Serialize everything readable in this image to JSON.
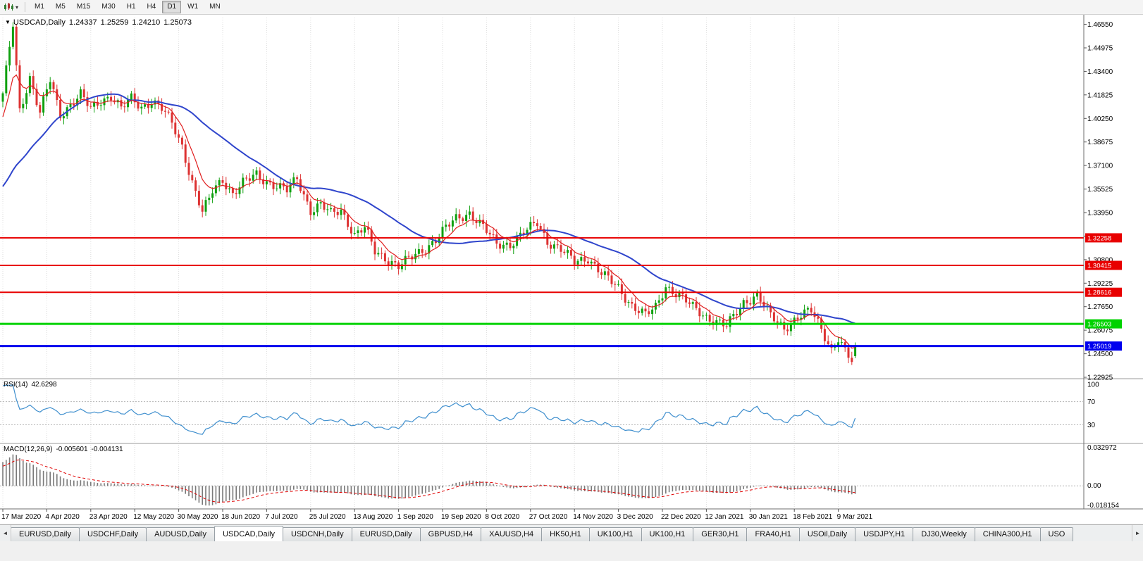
{
  "toolbar": {
    "timeframes": [
      "M1",
      "M5",
      "M15",
      "M30",
      "H1",
      "H4",
      "D1",
      "W1",
      "MN"
    ],
    "active_timeframe": "D1"
  },
  "icons": {
    "dropdown_small": "▾",
    "header_marker": "▼",
    "tab_scroll_left": "◄",
    "tab_scroll_right": "►"
  },
  "header": {
    "symbol": "USDCAD,Daily",
    "open": "1.24337",
    "high": "1.25259",
    "low": "1.24210",
    "close": "1.25073"
  },
  "panels": {
    "rsi": {
      "title": "RSI(14)",
      "value": "42.6298"
    },
    "macd": {
      "title": "MACD(12,26,9)",
      "macd": "-0.005601",
      "signal": "-0.004131"
    }
  },
  "tabs": {
    "active_index": 3,
    "items": [
      {
        "label": "EURUSD,Daily"
      },
      {
        "label": "USDCHF,Daily"
      },
      {
        "label": "AUDUSD,Daily"
      },
      {
        "label": "USDCAD,Daily"
      },
      {
        "label": "USDCNH,Daily"
      },
      {
        "label": "EURUSD,Daily"
      },
      {
        "label": "GBPUSD,H4"
      },
      {
        "label": "XAUUSD,H4"
      },
      {
        "label": "HK50,H1"
      },
      {
        "label": "UK100,H1"
      },
      {
        "label": "UK100,H1"
      },
      {
        "label": "GER30,H1"
      },
      {
        "label": "FRA40,H1"
      },
      {
        "label": "USOil,Daily"
      },
      {
        "label": "USDJPY,H1"
      },
      {
        "label": "DJ30,Weekly"
      },
      {
        "label": "CHINA300,H1"
      },
      {
        "label": "USO"
      }
    ]
  },
  "chart_data": {
    "type": "candlestick",
    "symbol": "USDCAD",
    "timeframe": "Daily",
    "bars_visible": 253,
    "bars_per_label": 13,
    "price_axis": {
      "max": 1.47,
      "min": 1.22925,
      "tick_labels": [
        "1.46550",
        "1.44975",
        "1.43400",
        "1.41825",
        "1.40250",
        "1.38675",
        "1.37100",
        "1.35525",
        "1.33950",
        "1.32375",
        "1.30800",
        "1.29225",
        "1.27650",
        "1.26075",
        "1.24500",
        "1.22925"
      ]
    },
    "x_axis_labels": [
      "17 Mar 2020",
      "4 Apr 2020",
      "23 Apr 2020",
      "12 May 2020",
      "30 May 2020",
      "18 Jun 2020",
      "7 Jul 2020",
      "25 Jul 2020",
      "13 Aug 2020",
      "1 Sep 2020",
      "19 Sep 2020",
      "8 Oct 2020",
      "27 Oct 2020",
      "14 Nov 2020",
      "3 Dec 2020",
      "22 Dec 2020",
      "12 Jan 2021",
      "30 Jan 2021",
      "18 Feb 2021",
      "9 Mar 2021"
    ],
    "last_bar": {
      "open": 1.24337,
      "high": 1.25259,
      "low": 1.2421,
      "close": 1.25073
    },
    "trend_points": [
      [
        0,
        1.418
      ],
      [
        3,
        1.4655
      ],
      [
        5,
        1.408
      ],
      [
        8,
        1.43
      ],
      [
        11,
        1.406
      ],
      [
        14,
        1.428
      ],
      [
        17,
        1.405
      ],
      [
        20,
        1.412
      ],
      [
        23,
        1.4185
      ],
      [
        26,
        1.4085
      ],
      [
        29,
        1.4145
      ],
      [
        32,
        1.418
      ],
      [
        35,
        1.409
      ],
      [
        38,
        1.4155
      ],
      [
        41,
        1.41
      ],
      [
        44,
        1.4145
      ],
      [
        47,
        1.409
      ],
      [
        50,
        1.399
      ],
      [
        53,
        1.384
      ],
      [
        56,
        1.36
      ],
      [
        59,
        1.3395
      ],
      [
        61,
        1.348
      ],
      [
        62,
        1.354
      ],
      [
        65,
        1.362
      ],
      [
        68,
        1.352
      ],
      [
        71,
        1.359
      ],
      [
        75,
        1.365
      ],
      [
        78,
        1.3605
      ],
      [
        81,
        1.357
      ],
      [
        84,
        1.354
      ],
      [
        87,
        1.3625
      ],
      [
        91,
        1.341
      ],
      [
        94,
        1.3445
      ],
      [
        97,
        1.3385
      ],
      [
        100,
        1.3415
      ],
      [
        104,
        1.3245
      ],
      [
        107,
        1.329
      ],
      [
        110,
        1.3135
      ],
      [
        113,
        1.3095
      ],
      [
        117,
        1.3035
      ],
      [
        120,
        1.308
      ],
      [
        125,
        1.316
      ],
      [
        128,
        1.3215
      ],
      [
        131,
        1.329
      ],
      [
        134,
        1.3355
      ],
      [
        138,
        1.3395
      ],
      [
        142,
        1.3295
      ],
      [
        146,
        1.3185
      ],
      [
        150,
        1.3185
      ],
      [
        154,
        1.3255
      ],
      [
        158,
        1.333
      ],
      [
        161,
        1.3205
      ],
      [
        165,
        1.3145
      ],
      [
        169,
        1.3065
      ],
      [
        173,
        1.3095
      ],
      [
        177,
        1.2985
      ],
      [
        182,
        1.289
      ],
      [
        186,
        1.2775
      ],
      [
        190,
        1.2705
      ],
      [
        193,
        1.276
      ],
      [
        196,
        1.2905
      ],
      [
        200,
        1.284
      ],
      [
        204,
        1.276
      ],
      [
        208,
        1.27
      ],
      [
        211,
        1.2665
      ],
      [
        214,
        1.263
      ],
      [
        219,
        1.2795
      ],
      [
        223,
        1.2845
      ],
      [
        227,
        1.27
      ],
      [
        231,
        1.2625
      ],
      [
        235,
        1.2695
      ],
      [
        239,
        1.2735
      ],
      [
        242,
        1.262
      ],
      [
        245,
        1.248
      ],
      [
        247,
        1.255
      ],
      [
        249,
        1.246
      ],
      [
        251,
        1.2395
      ],
      [
        252,
        1.2507
      ]
    ],
    "synthesis": {
      "noise": [
        {
          "amp": 0.0026,
          "freq": 1.7,
          "phase": 0
        },
        {
          "amp": 0.0016,
          "freq": 0.53,
          "phase": 1.0
        }
      ],
      "wick": {
        "base": 0.0012,
        "amp": 0.0028,
        "freq_up": 2.31,
        "freq_dn": 1.37,
        "phase_dn": 2.0
      },
      "prehistory": {
        "bars": 40,
        "start": 1.325,
        "mid": 1.33,
        "mid_bar": 20,
        "end": 1.415
      }
    },
    "colors": {
      "up": "#0fa00f",
      "down": "#dd3232",
      "background": "#ffffff",
      "grid": "#dcdcdc"
    },
    "overlays": [
      {
        "name": "fast-ma",
        "type": "ema",
        "period": 8,
        "color": "#e01f1f",
        "width": 1.2
      },
      {
        "name": "slow-ma",
        "type": "sma",
        "period": 34,
        "color": "#2f45cc",
        "width": 2
      }
    ],
    "levels": [
      {
        "price": 1.32258,
        "label": "1.32258",
        "color": "#e80000",
        "width": 2
      },
      {
        "price": 1.30415,
        "label": "1.30415",
        "color": "#e80000",
        "width": 2
      },
      {
        "price": 1.28616,
        "label": "1.28616",
        "color": "#e80000",
        "width": 2
      },
      {
        "price": 1.26503,
        "label": "1.26503",
        "color": "#00d200",
        "width": 3
      },
      {
        "price": 1.25019,
        "label": "1.25019",
        "color": "#0000ee",
        "width": 3
      }
    ],
    "rsi": {
      "period": 14,
      "current": 42.6298,
      "axis_labels": [
        "100",
        "70",
        "30"
      ],
      "levels": [
        100,
        70,
        30
      ],
      "color": "#3f8fce"
    },
    "macd": {
      "fast": 12,
      "slow": 26,
      "signal_period": 9,
      "current_macd": -0.005601,
      "current_signal": -0.004131,
      "axis_max": 0.032972,
      "axis_min": -0.018154,
      "axis_labels": [
        "0.032972",
        "0.00",
        "-0.018154"
      ],
      "hist_color": "#7a7a7a",
      "signal_color": "#e00000"
    }
  }
}
